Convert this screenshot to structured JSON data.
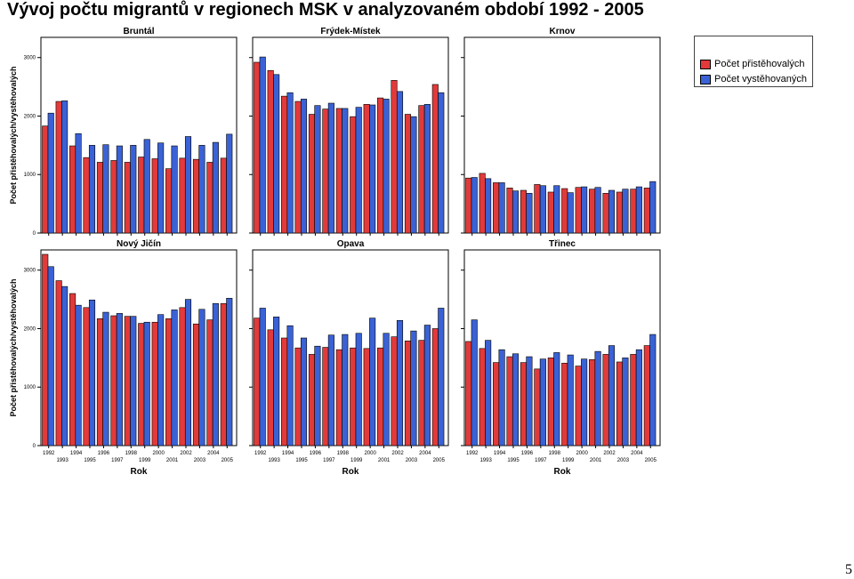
{
  "title": "Vývoj počtu migrantů v regionech MSK v analyzovaném období 1992 - 2005",
  "page_number": "5",
  "colors": {
    "immigrants": "#e23a3a",
    "emigrants": "#3a62d6"
  },
  "chart_data": {
    "type": "bar",
    "ylabel": "Počet přistěhovalých/vystěhovalých",
    "xlabel": "Rok",
    "ylim": [
      0,
      3300
    ],
    "yticks": [
      "0",
      "1000",
      "2000",
      "3000"
    ],
    "categories": [
      "1992",
      "1993",
      "1994",
      "1995",
      "1996",
      "1997",
      "1998",
      "1999",
      "2000",
      "2001",
      "2002",
      "2003",
      "2004",
      "2005"
    ],
    "legend": [
      "Počet přistěhovalých",
      "Počet vystěhovaných"
    ],
    "legend_position": "top-right",
    "panels": [
      {
        "name": "Bruntál",
        "series": [
          {
            "name": "Počet přistěhovalých",
            "values": [
              1830,
              2250,
              1490,
              1290,
              1210,
              1240,
              1210,
              1300,
              1270,
              1100,
              1280,
              1260,
              1210,
              1280
            ]
          },
          {
            "name": "Počet vystěhovaných",
            "values": [
              2050,
              2260,
              1700,
              1500,
              1510,
              1490,
              1500,
              1600,
              1540,
              1490,
              1650,
              1500,
              1550,
              1690
            ]
          }
        ]
      },
      {
        "name": "Frýdek-Místek",
        "series": [
          {
            "name": "Počet přistěhovalých",
            "values": [
              2920,
              2780,
              2340,
              2250,
              2030,
              2120,
              2130,
              1990,
              2200,
              2310,
              2610,
              2030,
              2180,
              2540
            ]
          },
          {
            "name": "Počet vystěhovaných",
            "values": [
              3010,
              2710,
              2400,
              2290,
              2180,
              2220,
              2130,
              2150,
              2190,
              2290,
              2420,
              1990,
              2200,
              2400
            ]
          }
        ]
      },
      {
        "name": "Krnov",
        "series": [
          {
            "name": "Počet přistěhovalých",
            "values": [
              940,
              1020,
              860,
              770,
              730,
              830,
              700,
              760,
              780,
              750,
              680,
              700,
              750,
              770
            ]
          },
          {
            "name": "Počet vystěhovaných",
            "values": [
              950,
              930,
              860,
              720,
              680,
              810,
              810,
              690,
              790,
              780,
              730,
              750,
              790,
              880
            ]
          }
        ]
      },
      {
        "name": "Nový Jičín",
        "series": [
          {
            "name": "Počet přistěhovalých",
            "values": [
              3270,
              2820,
              2600,
              2360,
              2170,
              2220,
              2210,
              2090,
              2110,
              2170,
              2360,
              2080,
              2150,
              2430
            ]
          },
          {
            "name": "Počet vystěhovaných",
            "values": [
              3060,
              2720,
              2400,
              2490,
              2280,
              2260,
              2210,
              2110,
              2240,
              2320,
              2500,
              2330,
              2430,
              2520
            ]
          }
        ]
      },
      {
        "name": "Opava",
        "series": [
          {
            "name": "Počet přistěhovalých",
            "values": [
              2180,
              1980,
              1840,
              1670,
              1560,
              1680,
              1640,
              1670,
              1660,
              1670,
              1860,
              1790,
              1800,
              2000
            ]
          },
          {
            "name": "Počet vystěhovaných",
            "values": [
              2350,
              2200,
              2050,
              1840,
              1700,
              1890,
              1900,
              1920,
              2180,
              1920,
              2140,
              1960,
              2060,
              2350
            ]
          }
        ]
      },
      {
        "name": "Třinec",
        "series": [
          {
            "name": "Počet přistěhovalých",
            "values": [
              1780,
              1660,
              1420,
              1520,
              1420,
              1310,
              1500,
              1410,
              1360,
              1470,
              1560,
              1430,
              1560,
              1710
            ]
          },
          {
            "name": "Počet vystěhovaných",
            "values": [
              2150,
              1800,
              1640,
              1570,
              1520,
              1480,
              1590,
              1550,
              1480,
              1610,
              1710,
              1500,
              1640,
              1900
            ]
          }
        ]
      }
    ]
  }
}
